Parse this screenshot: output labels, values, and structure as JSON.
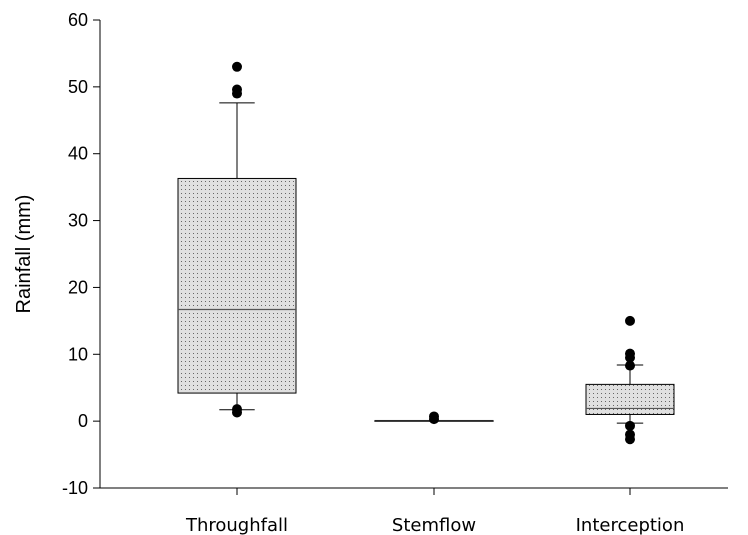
{
  "chart_data": {
    "type": "box",
    "xlabel": "",
    "ylabel": "Rainfall (mm)",
    "ylim": [
      -10,
      60
    ],
    "yticks": [
      -10,
      0,
      10,
      20,
      30,
      40,
      50,
      60
    ],
    "categories": [
      "Throughfall",
      "Stemflow",
      "Interception"
    ],
    "boxes": [
      {
        "category": "Throughfall",
        "whisker_low": 1.7,
        "q1": 4.2,
        "median": 16.7,
        "q3": 36.3,
        "whisker_high": 47.6,
        "outliers": [
          1.3,
          1.8,
          49.0,
          49.6,
          53.0
        ]
      },
      {
        "category": "Stemflow",
        "whisker_low": 0.0,
        "q1": 0.0,
        "median": 0.0,
        "q3": 0.1,
        "whisker_high": 0.1,
        "outliers": [
          0.3,
          0.7
        ]
      },
      {
        "category": "Interception",
        "whisker_low": -0.3,
        "q1": 1.0,
        "median": 1.9,
        "q3": 5.5,
        "whisker_high": 8.4,
        "outliers": [
          -2.7,
          -2.0,
          -0.7,
          8.3,
          9.5,
          10.1,
          15.0
        ]
      }
    ],
    "grid": false,
    "box_fill": "#e0e0e0"
  }
}
